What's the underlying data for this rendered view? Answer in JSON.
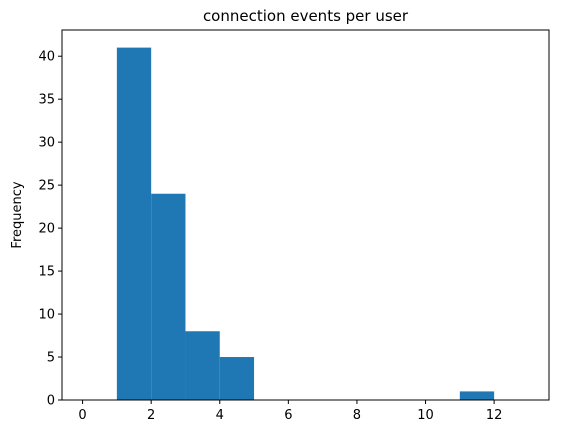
{
  "chart_data": {
    "type": "bar",
    "title": "connection events per user",
    "xlabel": "",
    "ylabel": "Frequency",
    "bins": [
      {
        "x0": 1,
        "x1": 2,
        "value": 41
      },
      {
        "x0": 2,
        "x1": 3,
        "value": 24
      },
      {
        "x0": 3,
        "x1": 4,
        "value": 8
      },
      {
        "x0": 4,
        "x1": 5,
        "value": 5
      },
      {
        "x0": 11,
        "x1": 12,
        "value": 1
      }
    ],
    "xlim": [
      -0.6,
      13.6
    ],
    "ylim": [
      0,
      43.05
    ],
    "xticks": [
      0,
      2,
      4,
      6,
      8,
      10,
      12
    ],
    "yticks": [
      0,
      5,
      10,
      15,
      20,
      25,
      30,
      35,
      40
    ],
    "grid": false,
    "bar_color": "#1f77b4"
  }
}
